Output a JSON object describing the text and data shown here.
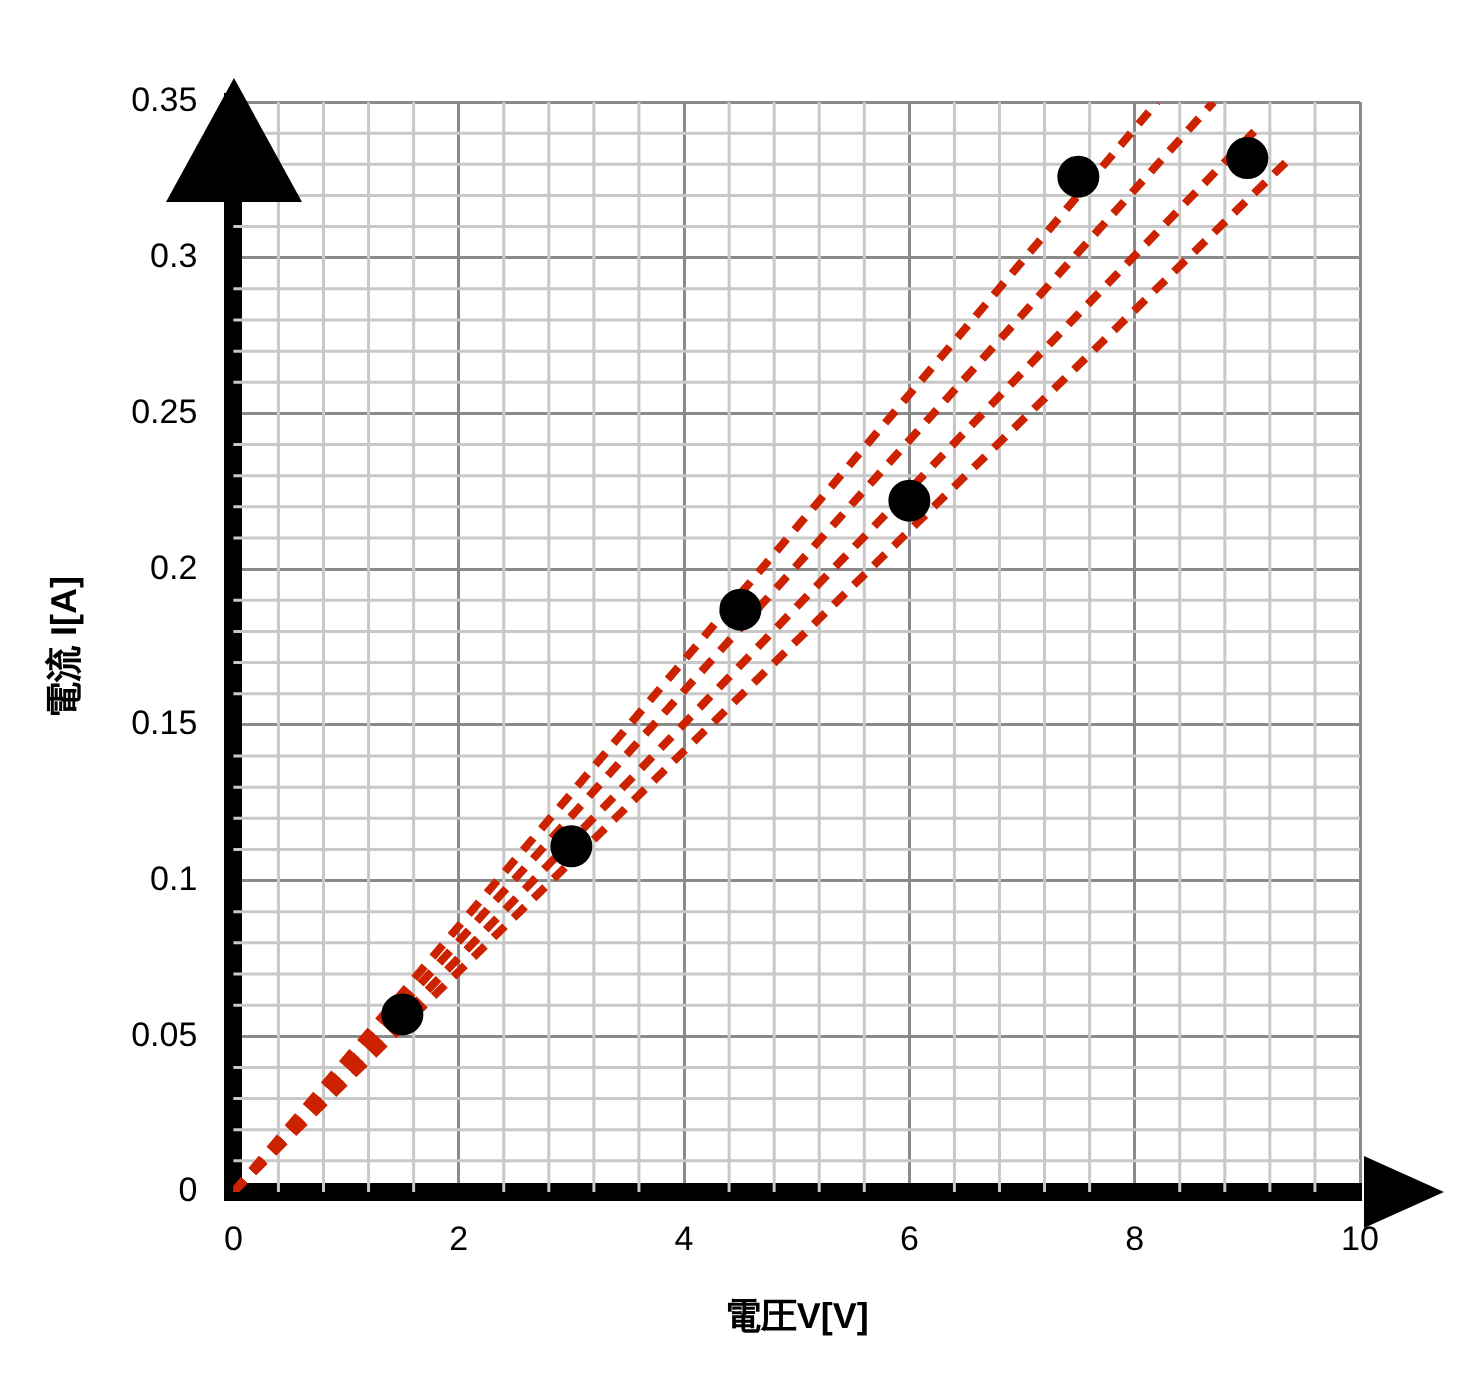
{
  "chart_data": {
    "type": "scatter",
    "xlabel": "電圧V[V]",
    "ylabel": "電流 I[A]",
    "xlim": [
      0,
      10
    ],
    "xticks": [
      0,
      2,
      4,
      6,
      8,
      10
    ],
    "ylim": [
      0,
      0.35
    ],
    "yticks": [
      0,
      0.05,
      0.1,
      0.15,
      0.2,
      0.25,
      0.3,
      0.35
    ],
    "grid": true,
    "legend": false,
    "line_style": "dashed",
    "series": [
      {
        "type": "scatter",
        "marker": "circle",
        "color": "#000000",
        "x": [
          1.5,
          3,
          4.5,
          6,
          7.5,
          9
        ],
        "values": [
          0.057,
          0.111,
          0.187,
          0.222,
          0.326,
          0.332
        ]
      },
      {
        "type": "line",
        "color": "#cc2200",
        "marker": "none",
        "x": [
          0,
          8.2
        ],
        "values": [
          0,
          0.35
        ]
      },
      {
        "type": "line",
        "color": "#cc2200",
        "marker": "none",
        "x": [
          0,
          8.7
        ],
        "values": [
          0,
          0.35
        ]
      },
      {
        "type": "line",
        "color": "#cc2200",
        "marker": "none",
        "x": [
          0,
          9.1
        ],
        "values": [
          0,
          0.342
        ]
      },
      {
        "type": "line",
        "color": "#cc2200",
        "marker": "none",
        "x": [
          0,
          9.38
        ],
        "values": [
          0,
          0.332
        ]
      }
    ]
  }
}
